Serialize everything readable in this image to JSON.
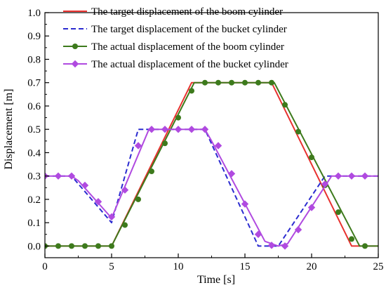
{
  "chart_data": {
    "type": "line",
    "title": "",
    "xlabel": "Time [s]",
    "ylabel": "Displacement [m]",
    "xlim": [
      0,
      25
    ],
    "ylim": [
      -0.05,
      1.0
    ],
    "xticks": [
      0,
      5,
      10,
      15,
      20,
      25
    ],
    "yticks": [
      0.0,
      0.1,
      0.2,
      0.3,
      0.4,
      0.5,
      0.6,
      0.7,
      0.8,
      0.9,
      1.0
    ],
    "xtick_labels": [
      "0",
      "5",
      "10",
      "15",
      "20",
      "25"
    ],
    "ytick_labels": [
      "0.0",
      "0.1",
      "0.2",
      "0.3",
      "0.4",
      "0.5",
      "0.6",
      "0.7",
      "0.8",
      "0.9",
      "1.0"
    ],
    "grid": false,
    "legend_position": "top-right",
    "series": [
      {
        "name": "The target displacement of the boom cylinder",
        "color": "#e8312f",
        "dash": "solid",
        "marker": "none",
        "x": [
          0,
          5,
          11,
          17,
          23,
          25
        ],
        "y": [
          0,
          0,
          0.7,
          0.7,
          0,
          0
        ]
      },
      {
        "name": "The target displacement of the bucket cylinder",
        "color": "#2b2bd0",
        "dash": "dashed",
        "marker": "none",
        "x": [
          0,
          2,
          5,
          7,
          12,
          16,
          17.5,
          21,
          25
        ],
        "y": [
          0.3,
          0.3,
          0.1,
          0.5,
          0.5,
          0,
          0,
          0.3,
          0.3
        ]
      },
      {
        "name": "The actual displacement of the boom cylinder",
        "color": "#3d7a1c",
        "dash": "solid",
        "marker": "circle",
        "x": [
          0,
          5,
          11.2,
          17.2,
          23.6,
          25
        ],
        "y": [
          0,
          0,
          0.7,
          0.7,
          0,
          0
        ],
        "marker_x": [
          0,
          1,
          2,
          3,
          4,
          5,
          6,
          7,
          8,
          9,
          10,
          11,
          12,
          13,
          14,
          15,
          16,
          17,
          18,
          19,
          20,
          21,
          22,
          23,
          24
        ],
        "marker_y": [
          0,
          0,
          0,
          0,
          0,
          0,
          0.09,
          0.2,
          0.32,
          0.44,
          0.55,
          0.665,
          0.7,
          0.7,
          0.7,
          0.7,
          0.7,
          0.7,
          0.605,
          0.49,
          0.38,
          0.26,
          0.145,
          0.03,
          0
        ]
      },
      {
        "name": "The actual displacement of the bucket cylinder",
        "color": "#b04ae0",
        "dash": "solid",
        "marker": "diamond",
        "x": [
          0,
          2,
          2.5,
          5,
          7.8,
          12,
          12.5,
          16.5,
          17.5,
          18.2,
          21.5,
          25
        ],
        "y": [
          0.3,
          0.3,
          0.28,
          0.12,
          0.5,
          0.5,
          0.45,
          0.02,
          0,
          0.01,
          0.3,
          0.3
        ],
        "marker_x": [
          0,
          1,
          2,
          3,
          4,
          5,
          6,
          7,
          8,
          9,
          10,
          11,
          12,
          13,
          14,
          15,
          16,
          17,
          18,
          19,
          20,
          21,
          22,
          23,
          24
        ],
        "marker_y": [
          0.3,
          0.3,
          0.3,
          0.26,
          0.19,
          0.125,
          0.24,
          0.43,
          0.5,
          0.5,
          0.5,
          0.5,
          0.5,
          0.43,
          0.31,
          0.18,
          0.05,
          0.003,
          0,
          0.07,
          0.165,
          0.265,
          0.3,
          0.3,
          0.3
        ]
      }
    ]
  }
}
